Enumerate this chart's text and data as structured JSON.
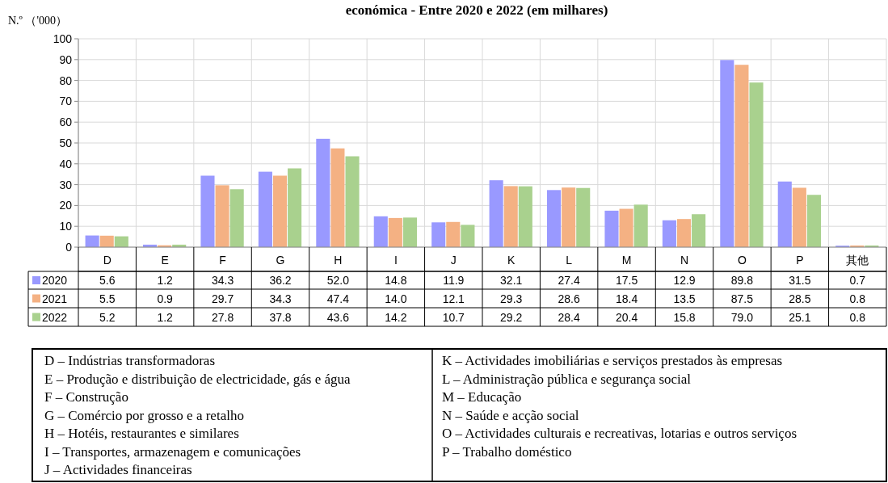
{
  "chart_data": {
    "type": "bar",
    "title": "económica - Entre 2020 e 2022 (em milhares)",
    "ylabel": "N.º （'000）",
    "categories": [
      "D",
      "E",
      "F",
      "G",
      "H",
      "I",
      "J",
      "K",
      "L",
      "M",
      "N",
      "O",
      "P",
      "其他"
    ],
    "series": [
      {
        "name": "2020",
        "color": "#9999ff",
        "values": [
          5.6,
          1.2,
          34.3,
          36.2,
          52.0,
          14.8,
          11.9,
          32.1,
          27.4,
          17.5,
          12.9,
          89.8,
          31.5,
          0.7
        ],
        "value_labels": [
          "5.6",
          "1.2",
          "34.3",
          "36.2",
          "52.0",
          "14.8",
          "11.9",
          "32.1",
          "27.4",
          "17.5",
          "12.9",
          "89.8",
          "31.5",
          "0.7"
        ]
      },
      {
        "name": "2021",
        "color": "#f4b183",
        "values": [
          5.5,
          0.9,
          29.7,
          34.3,
          47.4,
          14.0,
          12.1,
          29.3,
          28.6,
          18.4,
          13.5,
          87.5,
          28.5,
          0.8
        ],
        "value_labels": [
          "5.5",
          "0.9",
          "29.7",
          "34.3",
          "47.4",
          "14.0",
          "12.1",
          "29.3",
          "28.6",
          "18.4",
          "13.5",
          "87.5",
          "28.5",
          "0.8"
        ]
      },
      {
        "name": "2022",
        "color": "#a9d18e",
        "values": [
          5.2,
          1.2,
          27.8,
          37.8,
          43.6,
          14.2,
          10.7,
          29.2,
          28.4,
          20.4,
          15.8,
          79.0,
          25.1,
          0.8
        ],
        "value_labels": [
          "5.2",
          "1.2",
          "27.8",
          "37.8",
          "43.6",
          "14.2",
          "10.7",
          "29.2",
          "28.4",
          "20.4",
          "15.8",
          "79.0",
          "25.1",
          "0.8"
        ]
      }
    ],
    "ylim": [
      0,
      100
    ],
    "yticks": [
      0,
      10,
      20,
      30,
      40,
      50,
      60,
      70,
      80,
      90,
      100
    ],
    "grid": "y",
    "legend": "bottom",
    "annotations": [
      "D – Indústrias transformadoras",
      "E – Produção e distribuição de electricidade, gás e água",
      "F – Construção",
      "G – Comércio por grosso e a retalho",
      "H – Hotéis, restaurantes e similares",
      "I – Transportes, armazenagem e comunicações",
      "J – Actividades financeiras",
      "K – Actividades imobiliárias e serviços prestados às empresas",
      "L – Administração pública e segurança social",
      "M – Educação",
      "N – Saúde e acção social",
      "O – Actividades culturais e recreativas, lotarias e outros serviços",
      "P – Trabalho doméstico"
    ]
  }
}
